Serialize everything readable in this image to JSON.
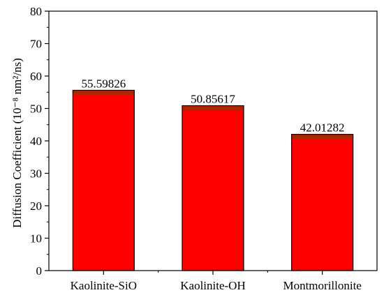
{
  "chart_data": {
    "type": "bar",
    "categories": [
      "Kaolinite-SiO",
      "Kaolinite-OH",
      "Montmorillonite"
    ],
    "values": [
      55.59826,
      50.85617,
      42.01282
    ],
    "data_labels": [
      "55.59826",
      "50.85617",
      "42.01282"
    ],
    "title": "",
    "xlabel": "",
    "ylabel": "Diffusion Coefficient (10⁻⁸ nm²/ns)",
    "ylim": [
      0,
      80
    ],
    "yticks": [
      0,
      10,
      20,
      30,
      40,
      50,
      60,
      70,
      80
    ],
    "grid": false,
    "legend": "none",
    "bar_color": "#ff0000",
    "bar_top_color": "#a52a00",
    "edge_color": "#000000"
  }
}
